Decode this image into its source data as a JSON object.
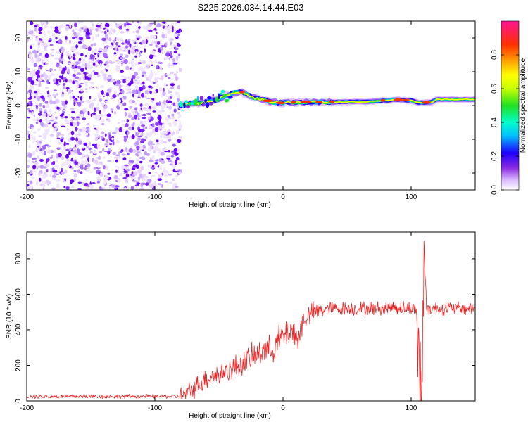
{
  "title": "S225.2026.034.14.44.E03",
  "chart_data": [
    {
      "type": "heatmap",
      "name": "spectrogram",
      "xlabel": "Height of straight line (km)",
      "ylabel": "Frequency (Hz)",
      "xlim": [
        -200,
        150
      ],
      "ylim": [
        -25,
        25
      ],
      "xticks": [
        -200,
        -100,
        0,
        100
      ],
      "yticks": [
        -20,
        -10,
        0,
        10,
        20
      ],
      "colorbar": {
        "label": "Normalized spectral amplitude",
        "range": [
          0,
          1
        ],
        "ticks": [
          0.0,
          0.2,
          0.4,
          0.6,
          0.8
        ],
        "tick_labels": [
          "0.0",
          "0.2",
          "0.4",
          "0.6",
          "0.8"
        ],
        "colors": [
          "#ffffff",
          "#d9b8ff",
          "#8a2be2",
          "#1e00ff",
          "#00bfff",
          "#00ffcc",
          "#20e020",
          "#c8ff00",
          "#ffff00",
          "#ffa500",
          "#ff3000",
          "#ff1493"
        ]
      },
      "signal_ridge": {
        "x": [
          -80,
          -72,
          -62,
          -52,
          -44,
          -38,
          -33,
          -28,
          -22,
          -15,
          -8,
          0,
          10,
          20,
          30,
          40,
          50,
          60,
          70,
          80,
          85,
          90,
          95,
          100,
          104,
          108,
          112,
          116,
          120,
          130,
          140,
          150
        ],
        "freq": [
          0.0,
          0.5,
          0.8,
          1.8,
          3.0,
          3.8,
          4.0,
          3.2,
          2.2,
          1.6,
          1.0,
          0.8,
          0.9,
          1.0,
          1.0,
          1.0,
          1.1,
          1.1,
          1.2,
          1.5,
          1.6,
          1.7,
          1.6,
          1.5,
          1.0,
          0.8,
          0.9,
          1.0,
          1.8,
          1.8,
          1.8,
          1.8
        ]
      },
      "noise_region_x": [
        -200,
        -80
      ]
    },
    {
      "type": "line",
      "name": "snr",
      "xlabel": "Height of straight line (km)",
      "ylabel": "SNR (10 * v/v)",
      "xlim": [
        -200,
        150
      ],
      "ylim": [
        0,
        950
      ],
      "xticks": [
        -200,
        -100,
        0,
        100
      ],
      "yticks": [
        0,
        200,
        400,
        600,
        800
      ],
      "color": "#ee2222",
      "series": [
        {
          "name": "SNR",
          "x": [
            -200,
            -180,
            -160,
            -140,
            -120,
            -100,
            -90,
            -80,
            -75,
            -70,
            -65,
            -60,
            -55,
            -50,
            -45,
            -40,
            -35,
            -30,
            -25,
            -20,
            -15,
            -10,
            -5,
            0,
            5,
            10,
            12,
            15,
            20,
            25,
            30,
            35,
            40,
            50,
            60,
            70,
            80,
            85,
            90,
            95,
            100,
            104,
            106,
            108,
            110,
            112,
            115,
            120,
            130,
            140,
            150
          ],
          "y": [
            25,
            25,
            25,
            25,
            25,
            25,
            25,
            25,
            40,
            70,
            100,
            120,
            150,
            140,
            170,
            180,
            200,
            220,
            240,
            260,
            300,
            280,
            330,
            360,
            400,
            380,
            330,
            450,
            480,
            500,
            510,
            520,
            520,
            520,
            520,
            520,
            520,
            530,
            525,
            520,
            520,
            520,
            200,
            50,
            900,
            520,
            520,
            520,
            520,
            520,
            520
          ]
        }
      ]
    }
  ]
}
